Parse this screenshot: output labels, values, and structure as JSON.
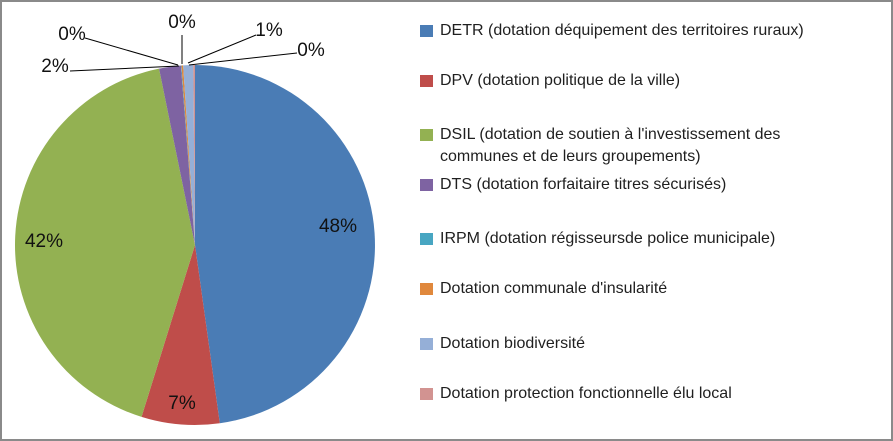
{
  "chart_data": {
    "type": "pie",
    "title": "",
    "legend_position": "right",
    "start_angle_deg": 0,
    "direction": "clockwise",
    "categories": [
      "DETR (dotation déquipement des territoires ruraux)",
      "DPV (dotation politique de la ville)",
      "DSIL (dotation de soutien à l'investissement des communes et de leurs groupements)",
      "DTS (dotation forfaitaire titres sécurisés)",
      "IRPM (dotation régisseursde police municipale)",
      "Dotation communale d'insularité",
      "Dotation biodiversité",
      "Dotation protection fonctionnelle élu local"
    ],
    "values": [
      48,
      7,
      42,
      2,
      0,
      0,
      1,
      0
    ],
    "labels": [
      "48%",
      "7%",
      "42%",
      "2%",
      "0%",
      "0%",
      "1%",
      "0%"
    ],
    "estimated_sweeps_pct": [
      47.8,
      7,
      42,
      1.95,
      0.05,
      0.15,
      0.9,
      0.15
    ],
    "colors": [
      "#4A7CB5",
      "#BF4D4A",
      "#93B152",
      "#7E63A2",
      "#48A6C2",
      "#E0883C",
      "#95AFD7",
      "#D29391"
    ]
  }
}
